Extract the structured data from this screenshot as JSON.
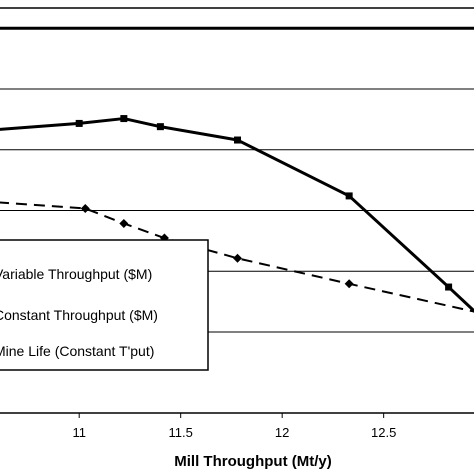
{
  "chart_data": {
    "type": "line",
    "xlabel": "Mill Throughput (Mt/y)",
    "xlim": [
      10.6,
      12.95
    ],
    "x_ticks": [
      "11",
      "11.5",
      "12",
      "12.5"
    ],
    "x_tick_values": [
      11,
      11.5,
      12,
      12.5
    ],
    "ylim": [
      0,
      1
    ],
    "y_gridlines": [
      0.2,
      0.35,
      0.5,
      0.65,
      0.8,
      0.95
    ],
    "grid": true,
    "legend_position": "lower-left",
    "legend": [
      "Variable Throughput ($M)",
      "Constant Throughput ($M)",
      "Mine Life (Constant T'put)"
    ],
    "series": [
      {
        "name": "Variable Throughput ($M)",
        "style": "solid",
        "marker": "square",
        "color": "#000000",
        "x": [
          10.6,
          11.0,
          11.22,
          11.4,
          11.78,
          12.33,
          12.82,
          12.95
        ],
        "y": [
          0.7,
          0.715,
          0.727,
          0.707,
          0.674,
          0.536,
          0.311,
          0.25
        ]
      },
      {
        "name": "Constant Throughput ($M)",
        "style": "solid",
        "marker": "none",
        "color": "#000000",
        "x": [
          10.6,
          12.95
        ],
        "y": [
          0.95,
          0.95
        ]
      },
      {
        "name": "Mine Life (Constant T'put)",
        "style": "dashed",
        "marker": "diamond",
        "color": "#000000",
        "x": [
          10.6,
          11.03,
          11.22,
          11.42,
          11.78,
          12.33,
          12.95
        ],
        "y": [
          0.52,
          0.505,
          0.468,
          0.432,
          0.382,
          0.319,
          0.25
        ]
      }
    ]
  }
}
